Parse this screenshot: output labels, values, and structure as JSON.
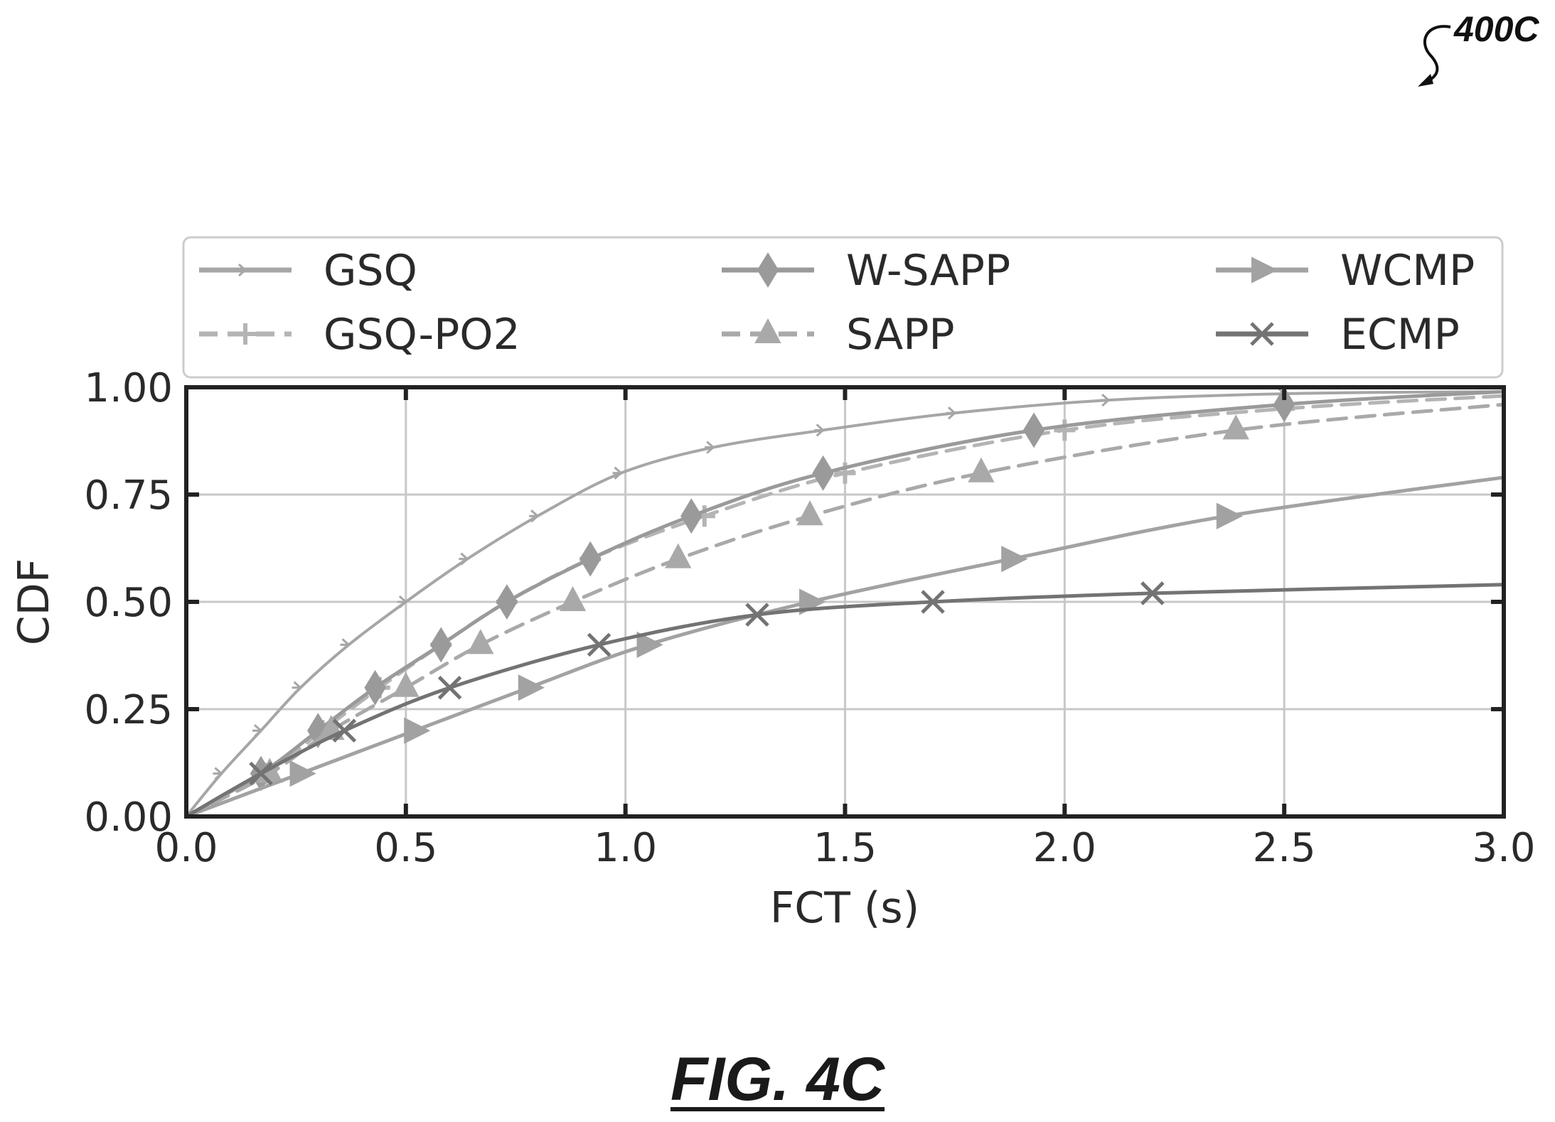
{
  "figure": {
    "ref": "400C",
    "caption": "FIG. 4C"
  },
  "colors": {
    "GSQ": "#a6a6a6",
    "W-SAPP": "#9a9a9a",
    "WCMP": "#a2a2a2",
    "GSQ-PO2": "#b4b4b4",
    "SAPP": "#a9a9a9",
    "ECMP": "#737373"
  },
  "chart_data": {
    "type": "line",
    "title": "",
    "xlabel": "FCT (s)",
    "ylabel": "CDF",
    "xlim": [
      0,
      3.0
    ],
    "ylim": [
      0,
      1.0
    ],
    "xticks": [
      "0.0",
      "0.5",
      "1.0",
      "1.5",
      "2.0",
      "2.5",
      "3.0"
    ],
    "yticks": [
      "0.00",
      "0.25",
      "0.50",
      "0.75",
      "1.00"
    ],
    "grid": true,
    "legend_position": "top",
    "series": [
      {
        "name": "GSQ",
        "marker": "tri_right",
        "dash": "solid",
        "x": [
          0,
          0.08,
          0.17,
          0.26,
          0.37,
          0.5,
          0.64,
          0.8,
          0.99,
          1.2,
          1.45,
          1.75,
          2.1,
          2.5,
          3.0
        ],
        "y": [
          0,
          0.1,
          0.2,
          0.3,
          0.4,
          0.5,
          0.6,
          0.7,
          0.8,
          0.86,
          0.9,
          0.94,
          0.97,
          0.985,
          0.99
        ]
      },
      {
        "name": "GSQ-PO2",
        "marker": "plus",
        "dash": "dashed",
        "x": [
          0,
          0.18,
          0.31,
          0.44,
          0.58,
          0.73,
          0.92,
          1.18,
          1.5,
          2.0,
          2.5,
          3.0
        ],
        "y": [
          0,
          0.1,
          0.2,
          0.3,
          0.4,
          0.5,
          0.6,
          0.7,
          0.8,
          0.9,
          0.95,
          0.98
        ]
      },
      {
        "name": "W-SAPP",
        "marker": "diamond",
        "dash": "solid",
        "x": [
          0,
          0.17,
          0.3,
          0.43,
          0.58,
          0.73,
          0.92,
          1.15,
          1.45,
          1.93,
          2.5,
          3.0
        ],
        "y": [
          0,
          0.1,
          0.2,
          0.3,
          0.4,
          0.5,
          0.6,
          0.7,
          0.8,
          0.9,
          0.96,
          0.99
        ]
      },
      {
        "name": "SAPP",
        "marker": "triangle_up",
        "dash": "dashed",
        "x": [
          0,
          0.19,
          0.33,
          0.5,
          0.67,
          0.88,
          1.12,
          1.42,
          1.81,
          2.39,
          3.0
        ],
        "y": [
          0,
          0.1,
          0.2,
          0.3,
          0.4,
          0.5,
          0.6,
          0.7,
          0.8,
          0.9,
          0.96
        ]
      },
      {
        "name": "WCMP",
        "marker": "triangle_right",
        "dash": "solid",
        "x": [
          0,
          0.26,
          0.52,
          0.78,
          1.05,
          1.42,
          1.88,
          2.37,
          3.0
        ],
        "y": [
          0,
          0.1,
          0.2,
          0.3,
          0.4,
          0.5,
          0.6,
          0.7,
          0.79
        ]
      },
      {
        "name": "ECMP",
        "marker": "x",
        "dash": "solid",
        "x": [
          0,
          0.17,
          0.36,
          0.6,
          0.94,
          1.3,
          1.7,
          2.2,
          3.0
        ],
        "y": [
          0,
          0.1,
          0.2,
          0.3,
          0.4,
          0.47,
          0.5,
          0.52,
          0.54
        ]
      }
    ]
  }
}
